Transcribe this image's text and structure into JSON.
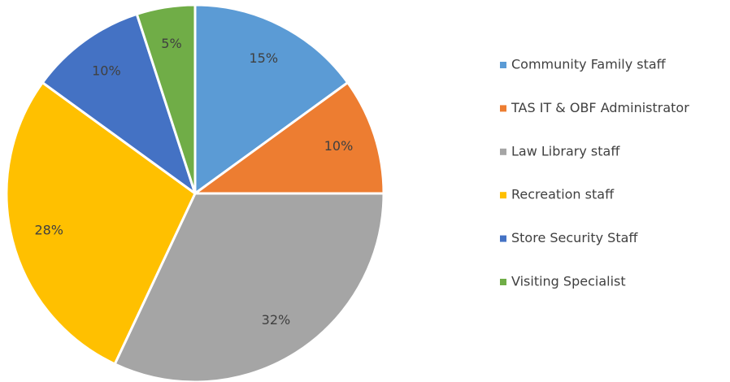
{
  "chart_data": {
    "type": "pie",
    "categories": [
      "Community Family staff",
      "TAS IT & OBF Administrator",
      "Law Library staff",
      "Recreation staff",
      "Store Security Staff",
      "Visiting Specialist"
    ],
    "values": [
      15,
      10,
      32,
      28,
      10,
      5
    ],
    "value_labels": [
      "15%",
      "10%",
      "32%",
      "28%",
      "10%",
      "5%"
    ],
    "colors": [
      "#5b9bd5",
      "#ed7d31",
      "#a5a5a5",
      "#ffc000",
      "#4472c4",
      "#70ad47"
    ],
    "legend": "right"
  }
}
